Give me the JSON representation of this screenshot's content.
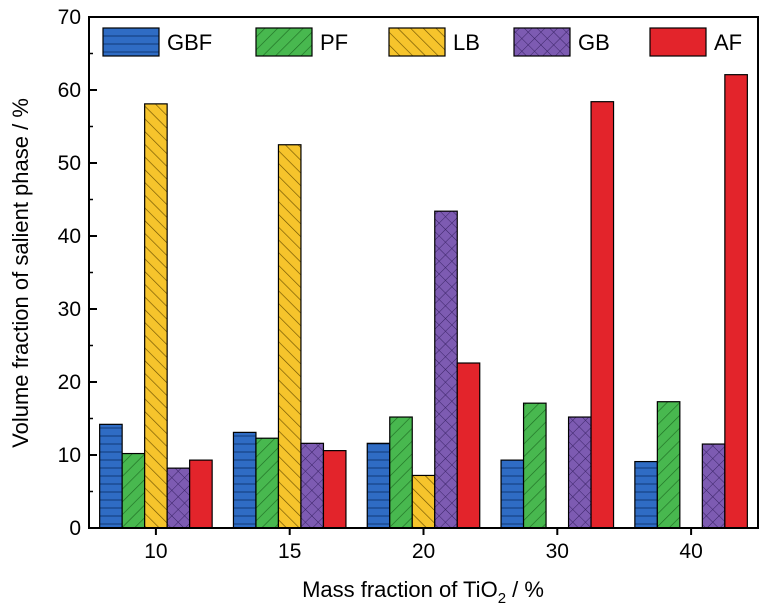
{
  "chart_data": {
    "type": "bar",
    "categories": [
      "10",
      "15",
      "20",
      "30",
      "40"
    ],
    "series": [
      {
        "name": "GBF",
        "values": [
          14.2,
          13.1,
          11.6,
          9.3,
          9.1
        ],
        "color": "#2f6cc4",
        "pattern": "horizontal-lines"
      },
      {
        "name": "PF",
        "values": [
          10.2,
          12.3,
          15.2,
          17.1,
          17.3
        ],
        "color": "#48b84f",
        "pattern": "diagonal-right"
      },
      {
        "name": "LB",
        "values": [
          58.1,
          52.5,
          7.2,
          0,
          0
        ],
        "color": "#f6c42c",
        "pattern": "diagonal-left"
      },
      {
        "name": "GB",
        "values": [
          8.2,
          11.6,
          43.4,
          15.2,
          11.5
        ],
        "color": "#7d5bb2",
        "pattern": "crosshatch"
      },
      {
        "name": "AF",
        "values": [
          9.3,
          10.6,
          22.6,
          58.4,
          62.1
        ],
        "color": "#e3242b",
        "pattern": "solid"
      }
    ],
    "xlabel_main": "Mass fraction of TiO",
    "xlabel_sub": "2",
    "xlabel_tail": " / %",
    "ylabel": "Volume fraction of salient phase / %",
    "ylim": [
      0,
      70
    ],
    "yticks": [
      "0",
      "10",
      "20",
      "30",
      "40",
      "50",
      "60",
      "70"
    ],
    "legend_position": "top",
    "grid": false
  }
}
